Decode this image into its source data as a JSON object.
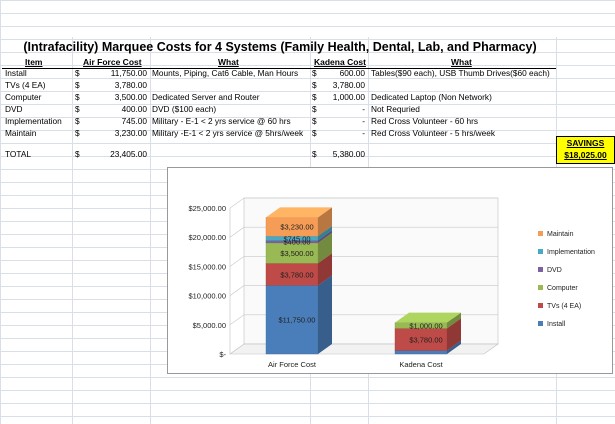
{
  "sheet": {
    "title": "(Intrafacility) Marquee Costs for 4 Systems (Family Health, Dental, Lab, and Pharmacy)",
    "headers": {
      "item": "Item",
      "af_cost": "Air Force Cost",
      "af_what": "What",
      "kad_cost": "Kadena Cost",
      "kad_what": "What"
    },
    "rows": [
      {
        "item": "Install",
        "af_sym": "$",
        "af_val": "11,750.00",
        "af_what": "Mounts, Piping, Cat6 Cable, Man Hours",
        "kad_sym": "$",
        "kad_val": "600.00",
        "kad_what": "Tables($90 each), USB Thumb Drives($60 each)"
      },
      {
        "item": "TVs (4 EA)",
        "af_sym": "$",
        "af_val": "3,780.00",
        "af_what": "",
        "kad_sym": "$",
        "kad_val": "3,780.00",
        "kad_what": ""
      },
      {
        "item": "Computer",
        "af_sym": "$",
        "af_val": "3,500.00",
        "af_what": "Dedicated Server and Router",
        "kad_sym": "$",
        "kad_val": "1,000.00",
        "kad_what": "Dedicated Laptop  (Non Network)"
      },
      {
        "item": "DVD",
        "af_sym": "$",
        "af_val": "400.00",
        "af_what": "DVD ($100 each)",
        "kad_sym": "$",
        "kad_val": "-",
        "kad_what": "Not Requried"
      },
      {
        "item": "Implementation",
        "af_sym": "$",
        "af_val": "745.00",
        "af_what": "Military - E-1 < 2 yrs service @ 60 hrs",
        "kad_sym": "$",
        "kad_val": "-",
        "kad_what": "Red Cross Volunteer - 60 hrs"
      },
      {
        "item": "Maintain",
        "af_sym": "$",
        "af_val": "3,230.00",
        "af_what": "Military -E-1 < 2 yrs service @ 5hrs/week",
        "kad_sym": "$",
        "kad_val": "-",
        "kad_what": "Red Cross Volunteer - 5 hrs/week"
      }
    ],
    "total": {
      "item": "TOTAL",
      "af_sym": "$",
      "af_val": "23,405.00",
      "kad_sym": "$",
      "kad_val": "5,380.00"
    },
    "savings": {
      "label": "SAVINGS",
      "value": "$18,025.00"
    }
  },
  "chart_data": {
    "type": "bar",
    "stacked": true,
    "categories": [
      "Air Force Cost",
      "Kadena Cost"
    ],
    "series": [
      {
        "name": "Install",
        "values": [
          11750,
          600
        ],
        "color": "#4a7ebb",
        "labels": [
          "$11,750.00",
          ""
        ]
      },
      {
        "name": "TVs (4 EA)",
        "values": [
          3780,
          3780
        ],
        "color": "#be4b48",
        "labels": [
          "$3,780.00",
          "$3,780.00"
        ]
      },
      {
        "name": "Computer",
        "values": [
          3500,
          1000
        ],
        "color": "#98b954",
        "labels": [
          "$3,500.00",
          "$1,000.00"
        ]
      },
      {
        "name": "DVD",
        "values": [
          400,
          0
        ],
        "color": "#7d60a0",
        "labels": [
          "$400.00",
          ""
        ]
      },
      {
        "name": "Implementation",
        "values": [
          745,
          0
        ],
        "color": "#46aac5",
        "labels": [
          "$745.00",
          ""
        ]
      },
      {
        "name": "Maintain",
        "values": [
          3230,
          0
        ],
        "color": "#f59d56",
        "labels": [
          "$3,230.00",
          ""
        ]
      }
    ],
    "legend_order": [
      "Maintain",
      "Implementation",
      "DVD",
      "Computer",
      "TVs (4 EA)",
      "Install"
    ],
    "yticks": [
      "$25,000.00",
      "$20,000.00",
      "$15,000.00",
      "$10,000.00",
      "$5,000.00",
      "$-"
    ],
    "ytick_values": [
      25000,
      20000,
      15000,
      10000,
      5000,
      0
    ],
    "ylim": [
      0,
      25000
    ],
    "legend_position": "right"
  }
}
